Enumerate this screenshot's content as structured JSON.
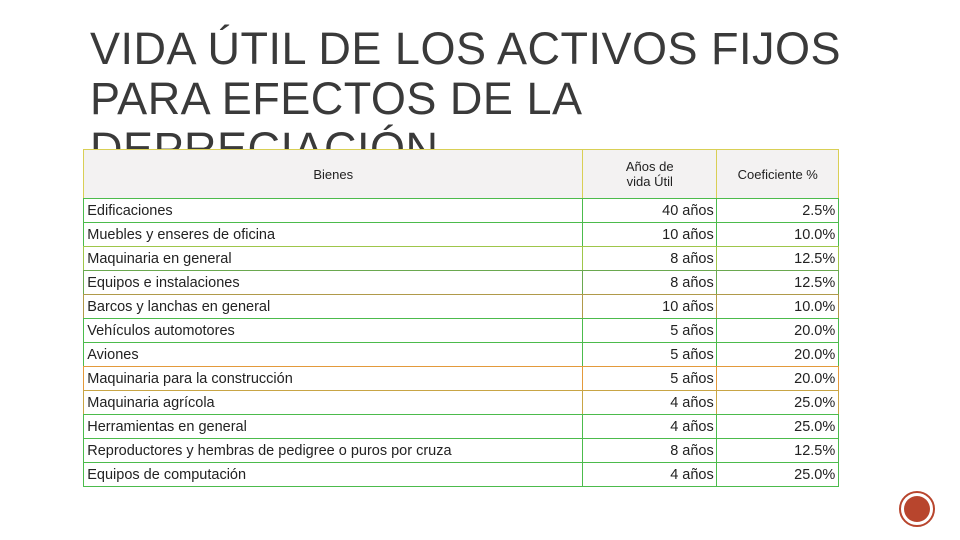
{
  "title": "VIDA ÚTIL DE LOS ACTIVOS FIJOS PARA EFECTOS DE LA DEPRECIACIÓN",
  "table": {
    "header": [
      "Bienes",
      "Años de vida Útil",
      "Coeficiente %"
    ],
    "rows": [
      [
        "Edificaciones",
        "40 años",
        "2.5%"
      ],
      [
        "Muebles y enseres de oficina",
        "10 años",
        "10.0%"
      ],
      [
        "Maquinaria en general",
        "8 años",
        "12.5%"
      ],
      [
        "Equipos e instalaciones",
        "8 años",
        "12.5%"
      ],
      [
        "Barcos y lanchas en general",
        "10 años",
        "10.0%"
      ],
      [
        "Vehículos automotores",
        "5 años",
        "20.0%"
      ],
      [
        "Aviones",
        "5 años",
        "20.0%"
      ],
      [
        "Maquinaria para la construcción",
        "5 años",
        "20.0%"
      ],
      [
        "Maquinaria agrícola",
        "4 años",
        "25.0%"
      ],
      [
        "Herramientas en general",
        "4 años",
        "25.0%"
      ],
      [
        "Reproductores y hembras de pedigree o puros por cruza",
        "8 años",
        "12.5%"
      ],
      [
        "Equipos de computación",
        "4 años",
        "25.0%"
      ]
    ]
  }
}
